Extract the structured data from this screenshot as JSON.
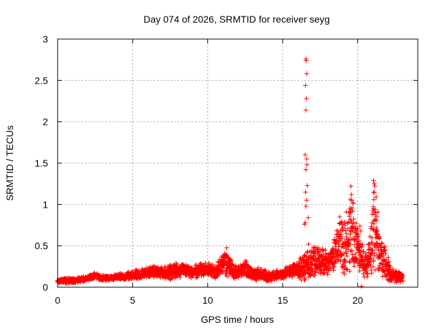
{
  "chart_data": {
    "type": "scatter",
    "title": "Day 074 of 2026, SRMTID for receiver seyg",
    "xlabel": "GPS time / hours",
    "ylabel": "SRMTID / TECUs",
    "xlim": [
      0,
      24
    ],
    "ylim": [
      0,
      3
    ],
    "xticks": [
      0,
      5,
      10,
      15,
      20
    ],
    "xtick_labels": [
      "0",
      "5",
      "10",
      "15",
      "20"
    ],
    "yticks": [
      0,
      0.5,
      1,
      1.5,
      2,
      2.5,
      3
    ],
    "ytick_labels": [
      "0",
      "0.5",
      "1",
      "1.5",
      "2",
      "2.5",
      "3"
    ],
    "grid": true,
    "marker": "+",
    "series": [
      {
        "name": "SRMTID",
        "color": "#ff0000",
        "envelope": [
          [
            0.0,
            0.05,
            0.1
          ],
          [
            0.5,
            0.04,
            0.12
          ],
          [
            1.0,
            0.05,
            0.11
          ],
          [
            1.5,
            0.06,
            0.12
          ],
          [
            2.0,
            0.08,
            0.14
          ],
          [
            2.5,
            0.1,
            0.18
          ],
          [
            3.0,
            0.07,
            0.15
          ],
          [
            3.5,
            0.08,
            0.14
          ],
          [
            4.0,
            0.08,
            0.17
          ],
          [
            4.5,
            0.08,
            0.18
          ],
          [
            5.0,
            0.09,
            0.2
          ],
          [
            5.5,
            0.1,
            0.22
          ],
          [
            6.0,
            0.11,
            0.24
          ],
          [
            6.5,
            0.12,
            0.26
          ],
          [
            7.0,
            0.1,
            0.24
          ],
          [
            7.5,
            0.08,
            0.28
          ],
          [
            8.0,
            0.1,
            0.3
          ],
          [
            8.5,
            0.12,
            0.29
          ],
          [
            9.0,
            0.1,
            0.26
          ],
          [
            9.5,
            0.12,
            0.3
          ],
          [
            10.0,
            0.13,
            0.31
          ],
          [
            10.5,
            0.1,
            0.26
          ],
          [
            11.0,
            0.14,
            0.4
          ],
          [
            11.3,
            0.12,
            0.5
          ],
          [
            11.7,
            0.1,
            0.28
          ],
          [
            12.0,
            0.09,
            0.24
          ],
          [
            12.5,
            0.12,
            0.37
          ],
          [
            13.0,
            0.08,
            0.22
          ],
          [
            13.5,
            0.07,
            0.24
          ],
          [
            14.0,
            0.06,
            0.2
          ],
          [
            14.5,
            0.08,
            0.2
          ],
          [
            15.0,
            0.09,
            0.22
          ],
          [
            15.5,
            0.12,
            0.27
          ],
          [
            16.0,
            0.1,
            0.3
          ],
          [
            16.3,
            0.06,
            0.42
          ],
          [
            16.8,
            0.05,
            0.45
          ],
          [
            17.3,
            0.12,
            0.55
          ],
          [
            17.8,
            0.1,
            0.45
          ],
          [
            18.3,
            0.15,
            0.52
          ],
          [
            18.8,
            0.14,
            0.85
          ],
          [
            19.2,
            0.1,
            0.95
          ],
          [
            19.6,
            0.15,
            1.22
          ],
          [
            20.0,
            0.2,
            0.75
          ],
          [
            20.4,
            0.12,
            0.45
          ],
          [
            20.8,
            0.1,
            0.6
          ],
          [
            21.1,
            0.15,
            1.29
          ],
          [
            21.5,
            0.1,
            0.75
          ],
          [
            21.9,
            0.08,
            0.45
          ],
          [
            22.3,
            0.05,
            0.22
          ],
          [
            22.8,
            0.05,
            0.2
          ],
          [
            23.0,
            0.06,
            0.16
          ]
        ],
        "spike_points": [
          [
            16.55,
            2.76
          ],
          [
            16.57,
            2.74
          ],
          [
            16.6,
            2.58
          ],
          [
            16.52,
            2.44
          ],
          [
            16.58,
            2.28
          ],
          [
            16.55,
            2.14
          ],
          [
            16.5,
            1.6
          ],
          [
            16.6,
            1.55
          ],
          [
            16.62,
            1.48
          ],
          [
            16.55,
            1.42
          ],
          [
            16.64,
            1.23
          ],
          [
            16.52,
            1.15
          ],
          [
            16.6,
            1.05
          ],
          [
            16.55,
            0.98
          ],
          [
            16.7,
            0.84
          ],
          [
            16.45,
            0.76
          ],
          [
            16.5,
            0.78
          ],
          [
            16.72,
            0.52
          ],
          [
            19.55,
            1.22
          ],
          [
            19.58,
            1.12
          ],
          [
            19.6,
            1.05
          ],
          [
            19.62,
            0.96
          ],
          [
            19.4,
            0.78
          ],
          [
            18.8,
            0.85
          ],
          [
            18.9,
            0.78
          ],
          [
            21.05,
            1.29
          ],
          [
            21.1,
            1.25
          ],
          [
            21.15,
            1.22
          ],
          [
            21.12,
            1.15
          ],
          [
            21.08,
            1.06
          ],
          [
            21.05,
            0.95
          ],
          [
            21.2,
            0.9
          ],
          [
            21.15,
            0.82
          ],
          [
            20.15,
            0.74
          ],
          [
            20.2,
            0.68
          ],
          [
            20.25,
            0.01
          ]
        ]
      }
    ]
  }
}
